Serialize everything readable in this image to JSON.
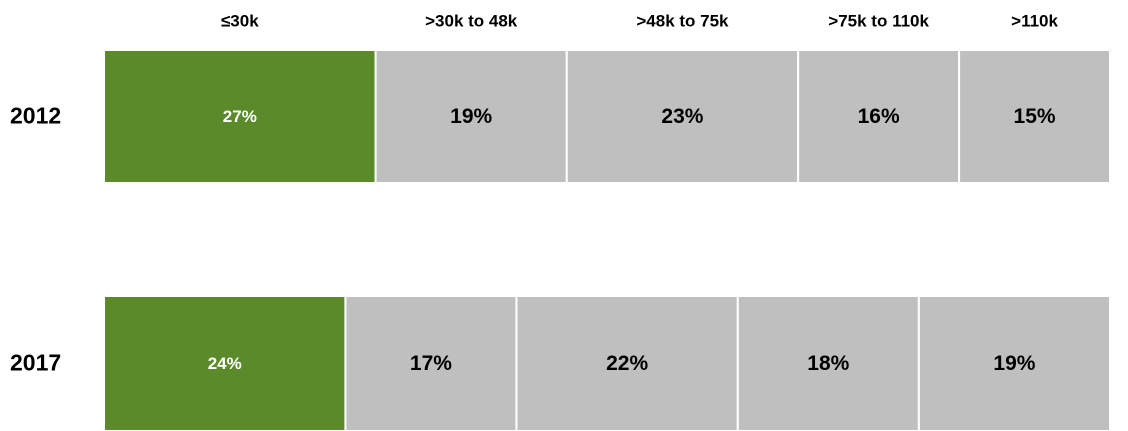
{
  "chart_data": {
    "type": "stacked-bar-horizontal",
    "categories": [
      "2012",
      "2017"
    ],
    "series": [
      {
        "name": "≤30k",
        "color": "#5b8a2a",
        "values": [
          27,
          24
        ],
        "value_labels": [
          "27%",
          "24%"
        ]
      },
      {
        "name": ">30k to 48k",
        "color": "#bfbfbf",
        "values": [
          19,
          17
        ],
        "value_labels": [
          "19%",
          "17%"
        ]
      },
      {
        "name": ">48k to 75k",
        "color": "#bfbfbf",
        "values": [
          23,
          22
        ],
        "value_labels": [
          "23%",
          "22%"
        ]
      },
      {
        "name": ">75k to 110k",
        "color": "#bfbfbf",
        "values": [
          16,
          18
        ],
        "value_labels": [
          "16%",
          "18%"
        ]
      },
      {
        "name": ">110k",
        "color": "#bfbfbf",
        "values": [
          15,
          19
        ],
        "value_labels": [
          "15%",
          "19%"
        ]
      }
    ]
  }
}
